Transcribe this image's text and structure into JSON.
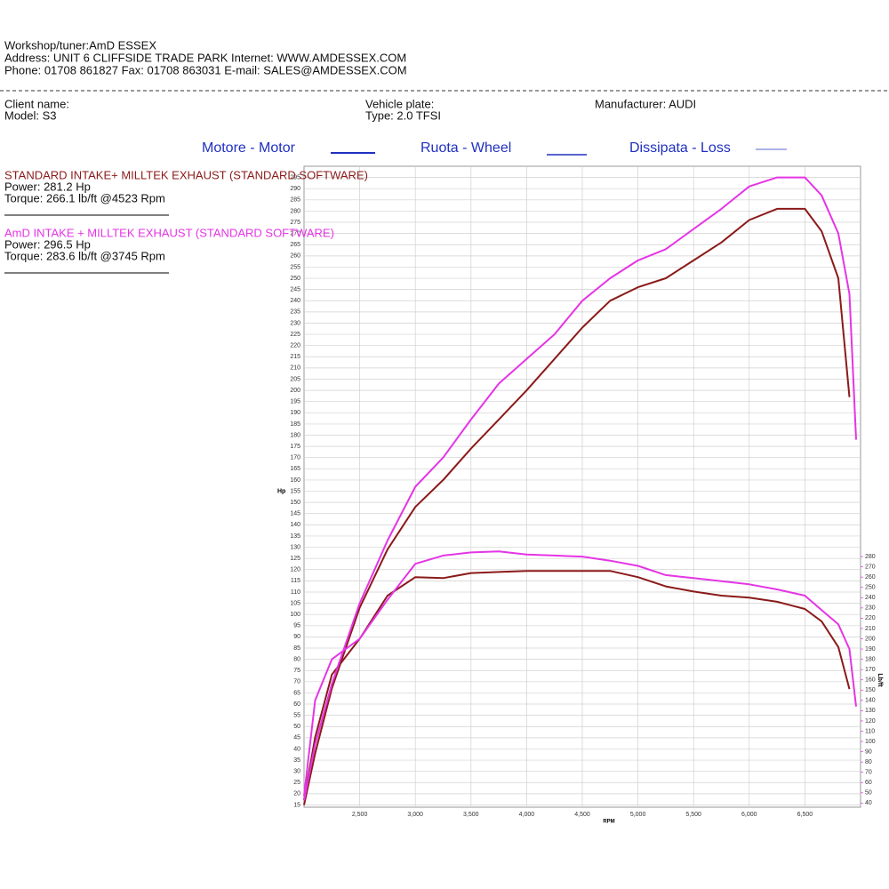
{
  "header": {
    "lines": [
      "Workshop/tuner:AmD ESSEX",
      "Address: UNIT 6 CLIFFSIDE TRADE PARK Internet: WWW.AMDESSEX.COM",
      "Phone: 01708 861827 Fax: 01708 863031 E-mail: SALES@AMDESSEX.COM"
    ],
    "client": "Client name:",
    "model": "Model: S3",
    "plate": "Vehicle plate:",
    "vtype": "Type: 2.0 TFSI",
    "manufacturer": "Manufacturer: AUDI",
    "legend": [
      "Motore - Motor",
      "Ruota - Wheel",
      "Dissipata - Loss"
    ]
  },
  "chart_data": {
    "type": "line",
    "xlabel": "RPM",
    "ylabel": "Hp",
    "y2label": "Lb/ft",
    "x": [
      2000,
      2100,
      2250,
      2500,
      2750,
      3000,
      3250,
      3500,
      3750,
      4000,
      4250,
      4500,
      4750,
      5000,
      5250,
      5500,
      5750,
      6000,
      6250,
      6500,
      6650,
      6800,
      6900,
      6960
    ],
    "xlim": [
      2000,
      7000
    ],
    "xticks": [
      {
        "value": 2500,
        "label": "2,500"
      },
      {
        "value": 3000,
        "label": "3,000"
      },
      {
        "value": 3500,
        "label": "3,500"
      },
      {
        "value": 4000,
        "label": "4,000"
      },
      {
        "value": 4500,
        "label": "4,500"
      },
      {
        "value": 5000,
        "label": "5,000"
      },
      {
        "value": 5500,
        "label": "5,500"
      },
      {
        "value": 6000,
        "label": "6,000"
      },
      {
        "value": 6500,
        "label": "6,500"
      }
    ],
    "ylim": [
      14,
      300
    ],
    "yticks": [
      15,
      20,
      25,
      30,
      35,
      40,
      45,
      50,
      55,
      60,
      65,
      70,
      75,
      80,
      85,
      90,
      95,
      100,
      105,
      110,
      115,
      120,
      125,
      130,
      135,
      140,
      145,
      150,
      155,
      160,
      165,
      170,
      175,
      180,
      185,
      190,
      195,
      200,
      205,
      210,
      215,
      220,
      225,
      230,
      235,
      240,
      245,
      250,
      255,
      260,
      265,
      270,
      275,
      280,
      285,
      290,
      295
    ],
    "y2lim": [
      36,
      660
    ],
    "y2ticks": [
      40,
      50,
      60,
      70,
      80,
      90,
      100,
      110,
      120,
      130,
      140,
      150,
      160,
      170,
      180,
      190,
      200,
      210,
      220,
      230,
      240,
      250,
      260,
      270,
      280
    ],
    "grid": true,
    "series": [
      {
        "name": "STANDARD INTAKE+ MILLTEK EXHAUST (STANDARD SOFTWARE)",
        "color": "#8b1a1a",
        "power_text": "Power: 281.2 Hp",
        "torque_text": "Torque: 266.1 lb/ft @4523 Rpm",
        "values": [
          15,
          38,
          67,
          103,
          129,
          148,
          160,
          174,
          187,
          200,
          214,
          228,
          240,
          246,
          250,
          258,
          266,
          276,
          281,
          281,
          271,
          250,
          197,
          null
        ],
        "torque": {
          "axis": "y2",
          "values": [
            43,
            104,
            165,
            200,
            242,
            260,
            259,
            264,
            265,
            266,
            266,
            266,
            266,
            260,
            251,
            246,
            242,
            240,
            236,
            229,
            217,
            192,
            151,
            null
          ]
        }
      },
      {
        "name": "AmD INTAKE + MILLTEK EXHAUST (STANDARD SOFTWARE)",
        "color": "#e535e5",
        "power_text": "Power: 296.5 Hp",
        "torque_text": "Torque: 283.6 lb/ft @3745 Rpm",
        "values": [
          17,
          42,
          69,
          105,
          133,
          157,
          170,
          187,
          203,
          214,
          225,
          240,
          250,
          258,
          263,
          272,
          281,
          291,
          295,
          295,
          287,
          270,
          243,
          178
        ],
        "torque": {
          "axis": "y2",
          "values": [
            47,
            140,
            180,
            200,
            238,
            273,
            281,
            284,
            285,
            282,
            281,
            280,
            276,
            271,
            262,
            259,
            256,
            253,
            248,
            242,
            228,
            214,
            190,
            134
          ]
        }
      }
    ]
  }
}
